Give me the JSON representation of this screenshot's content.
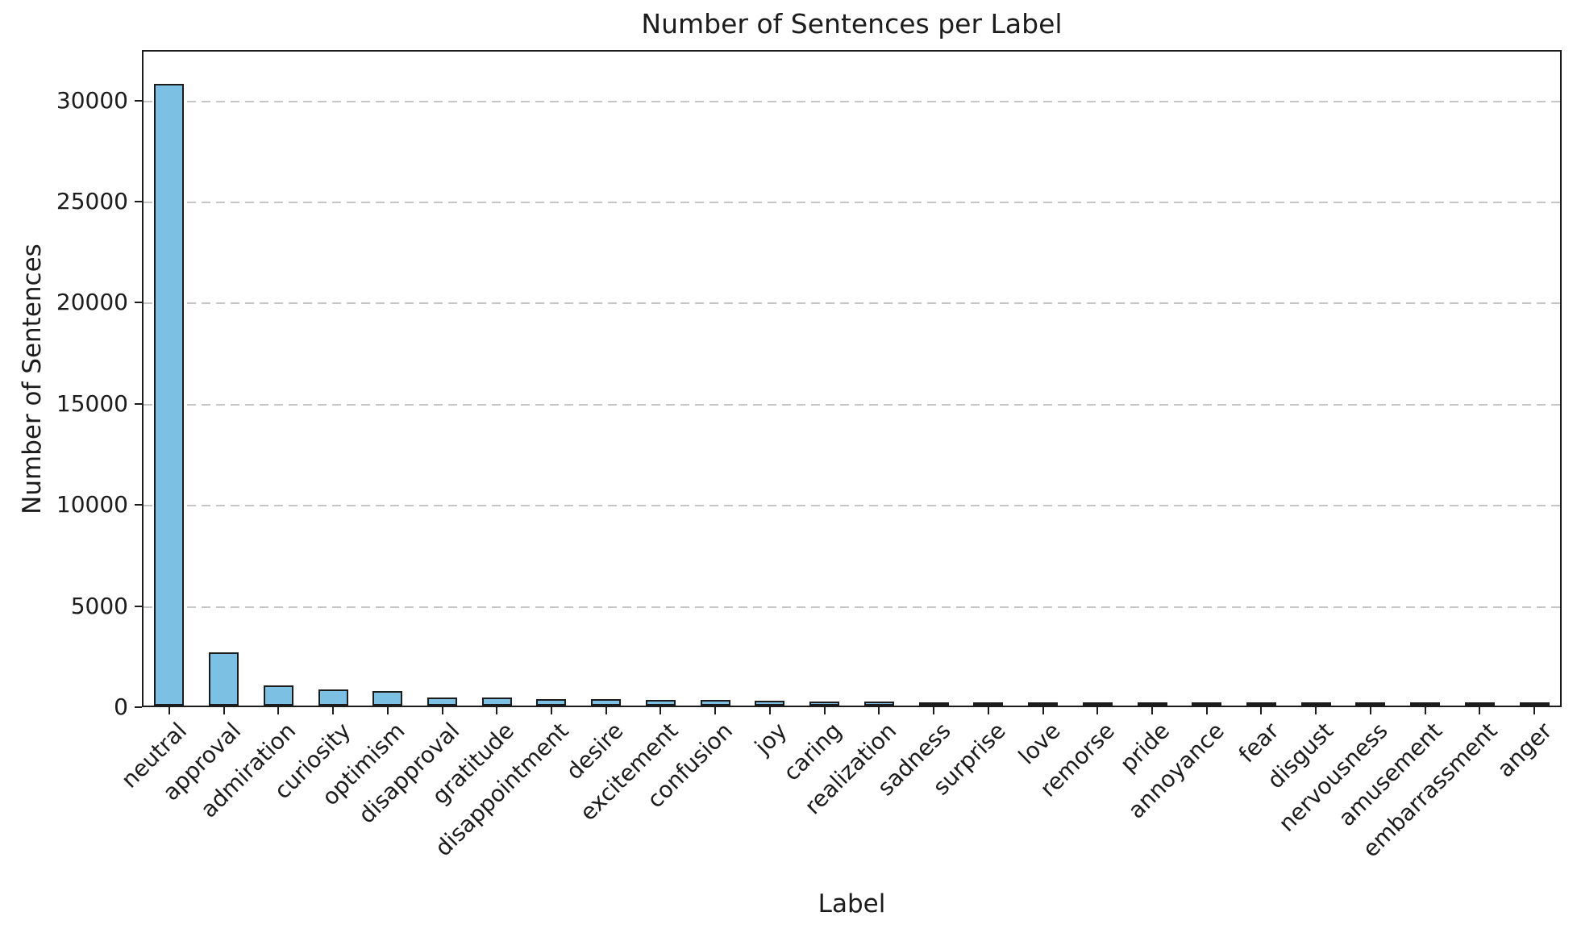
{
  "chart_data": {
    "type": "bar",
    "title": "Number of Sentences per Label",
    "xlabel": "Label",
    "ylabel": "Number of Sentences",
    "categories": [
      "neutral",
      "approval",
      "admiration",
      "curiosity",
      "optimism",
      "disapproval",
      "gratitude",
      "disappointment",
      "desire",
      "excitement",
      "confusion",
      "joy",
      "caring",
      "realization",
      "sadness",
      "surprise",
      "love",
      "remorse",
      "pride",
      "annoyance",
      "fear",
      "disgust",
      "nervousness",
      "amusement",
      "embarrassment",
      "anger"
    ],
    "values": [
      30750,
      2630,
      1010,
      815,
      705,
      410,
      390,
      325,
      305,
      290,
      270,
      220,
      210,
      195,
      140,
      132,
      120,
      113,
      106,
      72,
      65,
      56,
      46,
      36,
      28,
      22
    ],
    "ylim": [
      0,
      32500
    ],
    "yticks": [
      0,
      5000,
      10000,
      15000,
      20000,
      25000,
      30000
    ],
    "grid": {
      "axis": "y",
      "style": "dashed",
      "color": "#c6c6c6"
    },
    "legend": "none",
    "x_tick_rotation": 45,
    "bar_color": "#7cc0e4",
    "bar_edge_color": "#1c1c1c"
  }
}
